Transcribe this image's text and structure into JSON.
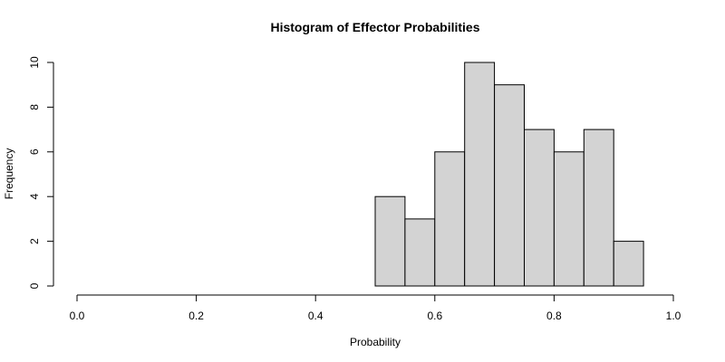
{
  "chart_data": {
    "type": "bar",
    "title": "Histogram of Effector Probabilities",
    "xlabel": "Probability",
    "ylabel": "Frequency",
    "xlim": [
      0,
      1
    ],
    "ylim": [
      0,
      10
    ],
    "x_ticks": [
      0.0,
      0.2,
      0.4,
      0.6,
      0.8,
      1.0
    ],
    "x_tick_labels": [
      "0.0",
      "0.2",
      "0.4",
      "0.6",
      "0.8",
      "1.0"
    ],
    "y_ticks": [
      0,
      2,
      4,
      6,
      8,
      10
    ],
    "y_tick_labels": [
      "0",
      "2",
      "4",
      "6",
      "8",
      "10"
    ],
    "bins": [
      {
        "from": 0.5,
        "to": 0.55,
        "count": 4
      },
      {
        "from": 0.55,
        "to": 0.6,
        "count": 3
      },
      {
        "from": 0.6,
        "to": 0.65,
        "count": 6
      },
      {
        "from": 0.65,
        "to": 0.7,
        "count": 10
      },
      {
        "from": 0.7,
        "to": 0.75,
        "count": 9
      },
      {
        "from": 0.75,
        "to": 0.8,
        "count": 7
      },
      {
        "from": 0.8,
        "to": 0.85,
        "count": 6
      },
      {
        "from": 0.85,
        "to": 0.9,
        "count": 7
      },
      {
        "from": 0.9,
        "to": 0.95,
        "count": 2
      }
    ],
    "grid": false,
    "bar_fill": "#d3d3d3",
    "bar_stroke": "#000000"
  }
}
